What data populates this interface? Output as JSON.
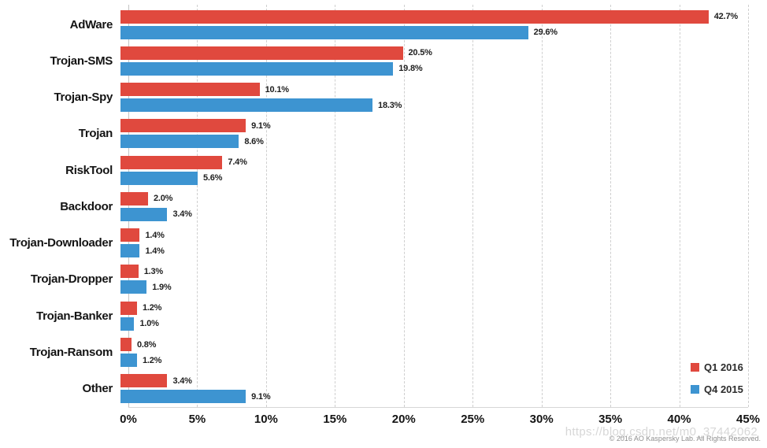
{
  "chart_data": {
    "type": "bar",
    "orientation": "horizontal",
    "title": "",
    "xlabel": "",
    "ylabel": "",
    "categories": [
      "AdWare",
      "Trojan-SMS",
      "Trojan-Spy",
      "Trojan",
      "RiskTool",
      "Backdoor",
      "Trojan-Downloader",
      "Trojan-Dropper",
      "Trojan-Banker",
      "Trojan-Ransom",
      "Other"
    ],
    "series": [
      {
        "name": "Q1 2016",
        "color": "#e0493e",
        "values": [
          42.7,
          20.5,
          10.1,
          9.1,
          7.4,
          2.0,
          1.4,
          1.3,
          1.2,
          0.8,
          3.4
        ]
      },
      {
        "name": "Q4 2015",
        "color": "#3d94d1",
        "values": [
          29.6,
          19.8,
          18.3,
          8.6,
          5.6,
          3.4,
          1.4,
          1.9,
          1.0,
          1.2,
          9.1
        ]
      }
    ],
    "value_suffix": "%",
    "xlim": [
      0,
      45
    ],
    "x_tick_step": 5,
    "x_ticks": [
      "0%",
      "5%",
      "10%",
      "15%",
      "20%",
      "25%",
      "30%",
      "35%",
      "40%",
      "45%"
    ],
    "grid": "vertical-dashed",
    "legend_position": "inside-bottom-right"
  },
  "footer": {
    "watermark": "https://blog.csdn.net/m0_37442062",
    "copyright": "© 2016 AO Kaspersky Lab. All Rights Reserved."
  }
}
